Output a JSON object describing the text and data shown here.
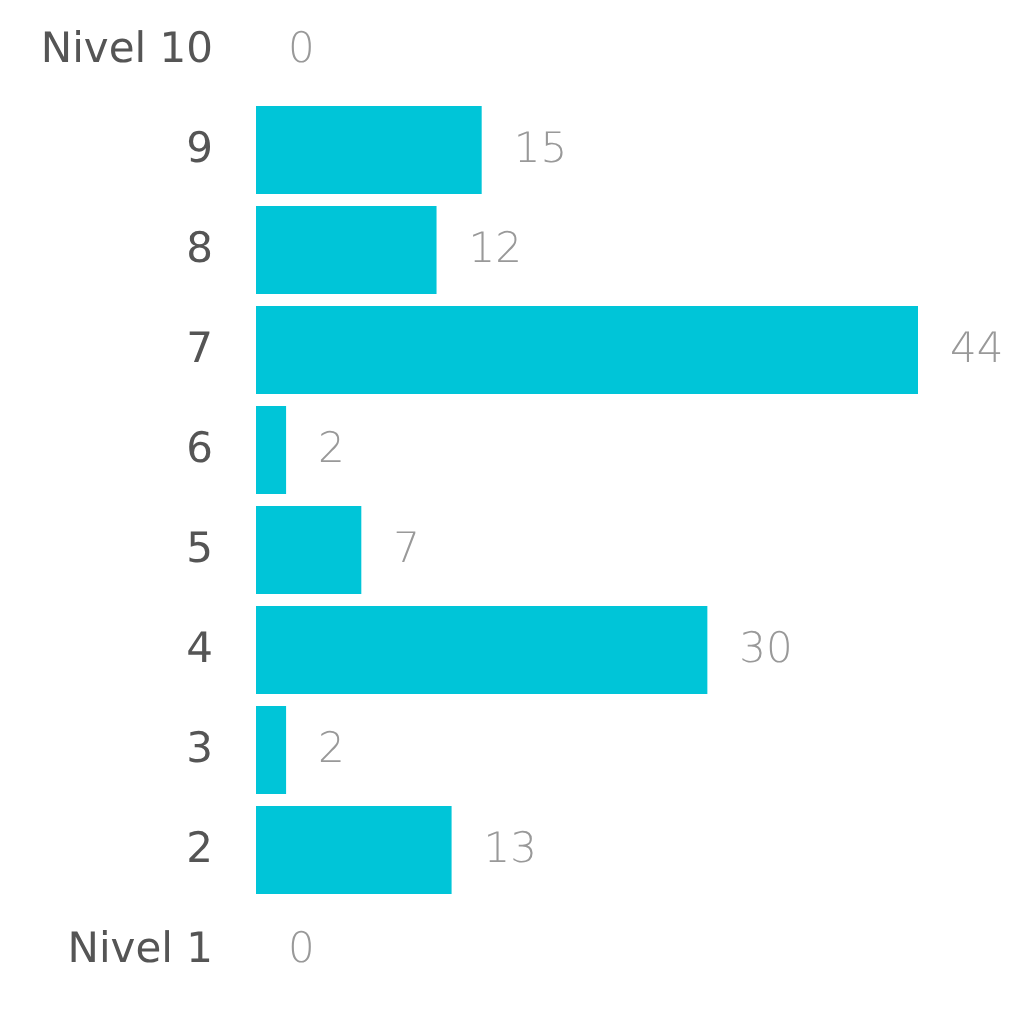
{
  "chart_data": {
    "type": "bar",
    "orientation": "horizontal",
    "categories": [
      "Nivel 10",
      "9",
      "8",
      "7",
      "6",
      "5",
      "4",
      "3",
      "2",
      "Nivel 1"
    ],
    "values": [
      0,
      15,
      12,
      44,
      2,
      7,
      30,
      2,
      13,
      0
    ],
    "color": "#00c5d8",
    "data_labels": true
  }
}
